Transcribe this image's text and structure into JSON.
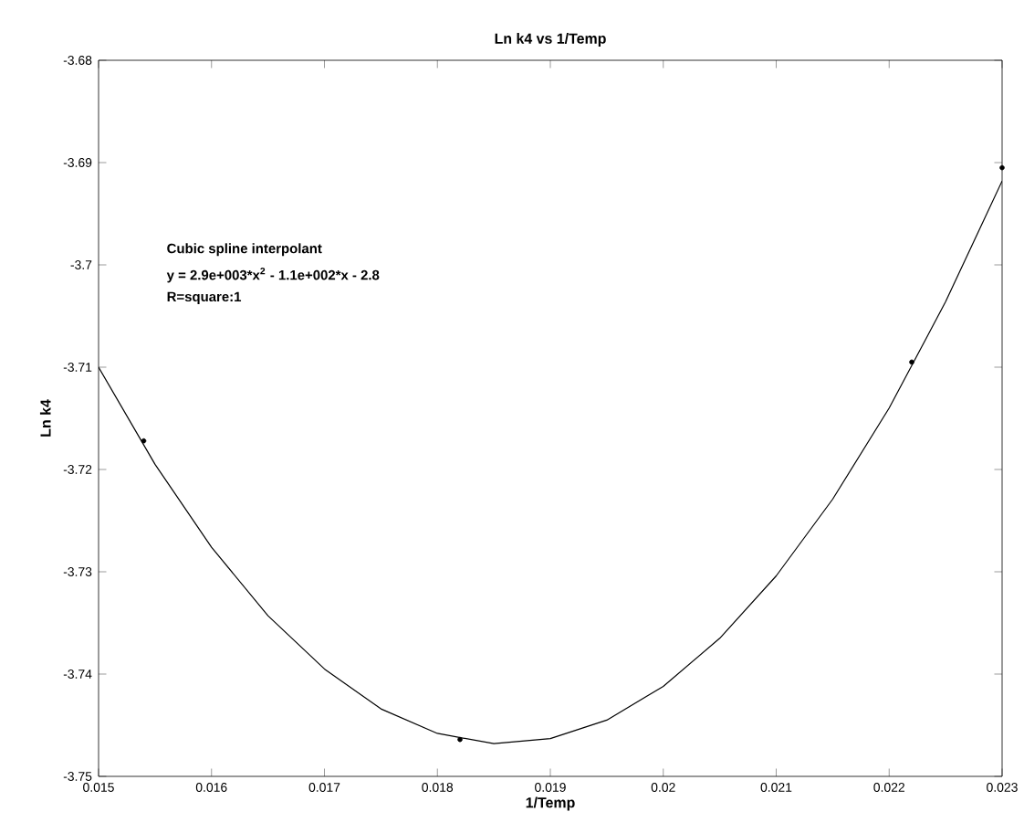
{
  "chart_data": {
    "type": "line",
    "title": "Ln k4 vs 1/Temp",
    "xlabel": "1/Temp",
    "ylabel": "Ln k4",
    "xlim": [
      0.015,
      0.023
    ],
    "xticks": [
      0.015,
      0.016,
      0.017,
      0.018,
      0.019,
      0.02,
      0.021,
      0.022,
      0.023
    ],
    "ylim": [
      -3.75,
      -3.68
    ],
    "yticks": [
      -3.75,
      -3.74,
      -3.73,
      -3.72,
      -3.71,
      -3.7,
      -3.69,
      -3.68
    ],
    "grid": false,
    "line_style": "solid",
    "annotations": [
      "Cubic spline interpolant",
      "y = 2.9e+003*x$^{2}$ - 1.1e+002*x - 2.8",
      "R=square:1"
    ],
    "series": [
      {
        "color": "#000000",
        "marker": "none",
        "x": [
          0.015,
          0.0155,
          0.016,
          0.0165,
          0.017,
          0.0175,
          0.018,
          0.0185,
          0.019,
          0.0195,
          0.02,
          0.0205,
          0.021,
          0.0215,
          0.022,
          0.0225,
          0.023
        ],
        "values": [
          -3.71,
          -3.7195,
          -3.7276,
          -3.7343,
          -3.7395,
          -3.7434,
          -3.7458,
          -3.7468,
          -3.7463,
          -3.7445,
          -3.7412,
          -3.7365,
          -3.7304,
          -3.7229,
          -3.714,
          -3.7036,
          -3.6918
        ]
      },
      {
        "type": "scatter",
        "color": "#000000",
        "marker": "circle",
        "x": [
          0.0154,
          0.0182,
          0.0222,
          0.023
        ],
        "values": [
          -3.7172,
          -3.7464,
          -3.7095,
          -3.6905
        ]
      }
    ]
  }
}
